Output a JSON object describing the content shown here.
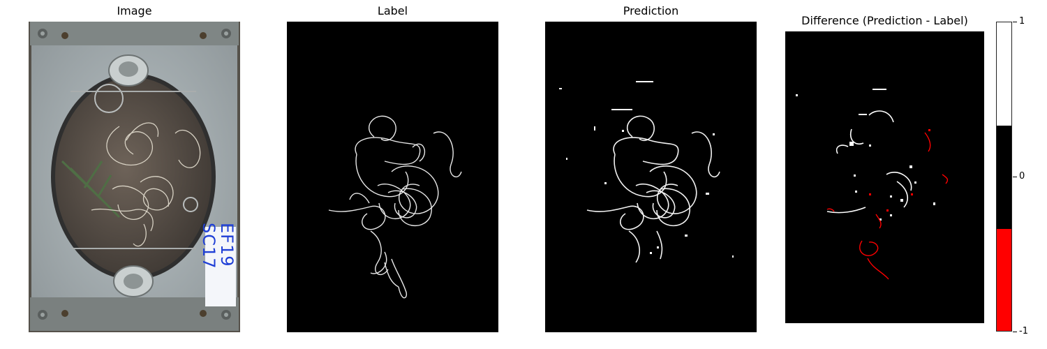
{
  "panels": [
    {
      "title": "Image"
    },
    {
      "title": "Label"
    },
    {
      "title": "Prediction"
    },
    {
      "title": "Difference (Prediction - Label)"
    }
  ],
  "specimen_label": {
    "line1": "EF19",
    "line2": "SC17"
  },
  "colorbar": {
    "ticks": [
      "1",
      "0",
      "-1"
    ],
    "colors": {
      "top": "#ffffff",
      "middle": "#000000",
      "bottom": "#ff0000"
    }
  }
}
